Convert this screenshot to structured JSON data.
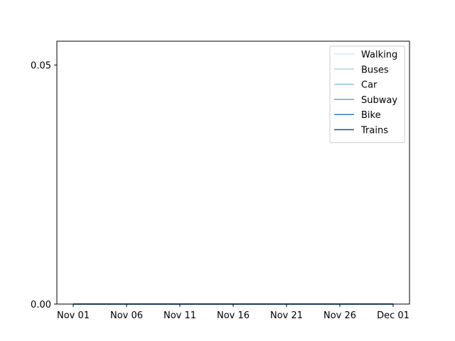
{
  "chart_data": {
    "type": "line",
    "title": "",
    "xlabel": "",
    "ylabel": "",
    "x_tick_labels": [
      "Nov 01",
      "Nov 06",
      "Nov 11",
      "Nov 16",
      "Nov 21",
      "Nov 26",
      "Dec 01"
    ],
    "x_range": [
      "Nov 01",
      "Dec 01"
    ],
    "y_ticks": [
      0.0,
      0.05
    ],
    "y_tick_labels": [
      "0.00",
      "0.05"
    ],
    "ylim": [
      0.0,
      0.055
    ],
    "grid": false,
    "legend_position": "top-right",
    "series": [
      {
        "name": "Walking",
        "color": "#d9e7f5",
        "values": [
          0,
          0,
          0,
          0,
          0,
          0,
          0
        ]
      },
      {
        "name": "Buses",
        "color": "#b9d6ea",
        "values": [
          0,
          0,
          0,
          0,
          0,
          0,
          0
        ]
      },
      {
        "name": "Car",
        "color": "#8dc0dd",
        "values": [
          0,
          0,
          0,
          0,
          0,
          0,
          0
        ]
      },
      {
        "name": "Subway",
        "color": "#5aa2cf",
        "values": [
          0,
          0,
          0,
          0,
          0,
          0,
          0
        ]
      },
      {
        "name": "Bike",
        "color": "#2d7dbb",
        "values": [
          0,
          0,
          0,
          0,
          0,
          0,
          0
        ]
      },
      {
        "name": "Trains",
        "color": "#0b559f",
        "values": [
          0,
          0,
          0,
          0,
          0,
          0,
          0
        ]
      }
    ]
  }
}
